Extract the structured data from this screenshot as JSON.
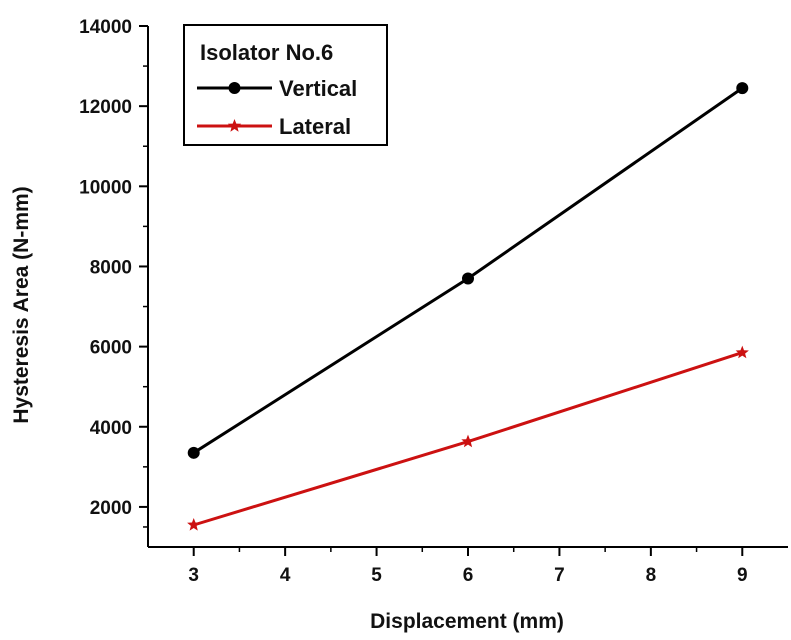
{
  "chart_data": {
    "type": "line",
    "title": "",
    "xlabel": "Displacement (mm)",
    "ylabel": "Hysteresis Area (N-mm)",
    "xlim": [
      2.5,
      9.5
    ],
    "ylim": [
      1000,
      14000
    ],
    "x_ticks": [
      3,
      4,
      5,
      6,
      7,
      8,
      9
    ],
    "y_ticks": [
      2000,
      4000,
      6000,
      8000,
      10000,
      12000,
      14000
    ],
    "legend_title": "Isolator No.6",
    "legend_position": "top-left",
    "grid": false,
    "series": [
      {
        "name": "Vertical",
        "x": [
          3,
          6,
          9
        ],
        "y": [
          3350,
          7700,
          12450
        ],
        "color": "#000000",
        "marker": "circle"
      },
      {
        "name": "Lateral",
        "x": [
          3,
          6,
          9
        ],
        "y": [
          1550,
          3630,
          5850
        ],
        "color": "#cc1111",
        "marker": "star"
      }
    ]
  }
}
